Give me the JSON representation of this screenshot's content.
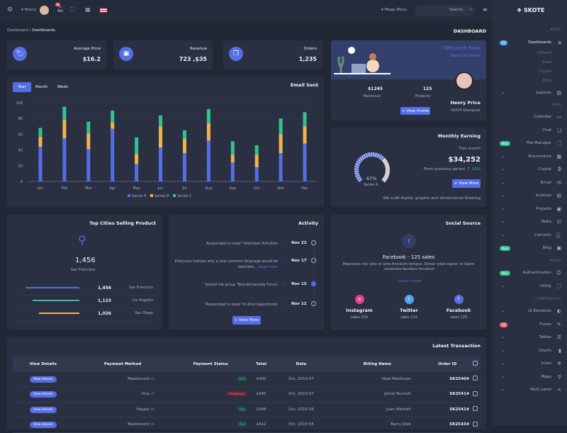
{
  "topbar": {
    "user": "Henry",
    "notif_count": "3",
    "mega_menu": "Mega Menu",
    "search_placeholder": "Search..."
  },
  "brand": "SKOTE",
  "breadcrumb": {
    "parent": "Dashboard",
    "current": "Dashboards"
  },
  "page_title": "DASHBOARD",
  "stats": [
    {
      "label": "Average Price",
      "value": "$16.2",
      "icon": "tag-icon"
    },
    {
      "label": "Revenue",
      "value": "723 ,$35",
      "icon": "archive-icon"
    },
    {
      "label": "Orders",
      "value": "1,235",
      "icon": "copy-icon"
    }
  ],
  "welcome": {
    "title": "! Welcome Back",
    "subtitle": "Skote Dashboard",
    "name": "Henry Price",
    "role": "UI/UX Designer",
    "revenue_value": "$1245",
    "revenue_label": "Revenue",
    "projects_value": "125",
    "projects_label": "Projects",
    "button": "View Profile"
  },
  "email_chart": {
    "title": "Email Sent",
    "tabs": [
      "Year",
      "Month",
      "Week"
    ],
    "active_tab": "Year"
  },
  "chart_data": {
    "type": "bar",
    "stacked": true,
    "categories": [
      "Jan",
      "Feb",
      "Mar",
      "Apr",
      "May",
      "Jun",
      "Jul",
      "Aug",
      "Sep",
      "Oct",
      "Nov",
      "Dec"
    ],
    "series": [
      {
        "name": "Series A",
        "color": "#556ee6",
        "values": [
          44,
          55,
          41,
          67,
          22,
          43,
          36,
          52,
          24,
          18,
          36,
          48
        ]
      },
      {
        "name": "Series B",
        "color": "#f1b44c",
        "values": [
          13,
          23,
          20,
          8,
          13,
          27,
          18,
          22,
          10,
          16,
          24,
          22
        ]
      },
      {
        "name": "Series C",
        "color": "#34c38f",
        "values": [
          11,
          17,
          15,
          15,
          21,
          14,
          11,
          18,
          17,
          12,
          20,
          18
        ]
      }
    ],
    "yticks": [
      0,
      20,
      40,
      60,
      80,
      100
    ],
    "ylim": [
      0,
      100
    ],
    "legend": "bottom",
    "grid": true
  },
  "earning": {
    "title": "Monthly Earning",
    "period": "This month",
    "value": "$34,252",
    "compare_label": "From previous period",
    "change": "12%",
    "gauge_percent": 67,
    "gauge_value": "67%",
    "gauge_label": "Series A",
    "button": "View More",
    "note": ".We craft digital, graphic and dimensional thinking"
  },
  "cities": {
    "title": "Top Cities Selling Product",
    "top_value": "1,456",
    "top_city": "San Francisco",
    "rows": [
      {
        "value": "1,456",
        "city": "San Francisco",
        "color": "#556ee6",
        "pct": 100
      },
      {
        "value": "1,123",
        "city": "Los Angeles",
        "color": "#34c38f",
        "pct": 87
      },
      {
        "value": "1,026",
        "city": "San Diego",
        "color": "#f1b44c",
        "pct": 75
      }
    ]
  },
  "activity": {
    "title": "Activity",
    "items": [
      {
        "text": "Responded to need \"Volunteer Activities",
        "date": "Nov 22"
      },
      {
        "text": "Everyone realizes why a new common language would be desirable...",
        "link": "Read more",
        "date": "Nov 17"
      },
      {
        "text": "\"Joined the group \"Boardsmanship Forum",
        "date": "Nov 15"
      },
      {
        "text": "\"Responded to need \"In-Kind Opportunity",
        "date": "Nov 12"
      }
    ],
    "button": "View More"
  },
  "social": {
    "title": "Social Source",
    "headline": "Facebook - 125 sales",
    "desc": "Maecenas nec odio et ante tincidunt tempus. Donec vitae sapien ut libero .venenatis faucibus tincidunt",
    "link": "Learn more",
    "sources": [
      {
        "name": "Instagram",
        "sales": "sales 104",
        "color": "#e83e8c",
        "icon": "instagram-icon"
      },
      {
        "name": "Twitter",
        "sales": "sales 112",
        "color": "#50a5f1",
        "icon": "twitter-icon"
      },
      {
        "name": "Facebook",
        "sales": "sales 125",
        "color": "#556ee6",
        "icon": "facebook-icon"
      }
    ]
  },
  "transactions": {
    "title": "Latest Transaction",
    "headers": [
      "View Details",
      "Payment Method",
      "Payment Status",
      "Total",
      "Date",
      "Billing Name",
      "Order ID"
    ],
    "rows": [
      {
        "button": "View Details",
        "method": "Mastercard",
        "status": "Paid",
        "total": "$400",
        "date": "Oct, 2019 07",
        "name": "Neal Matthews",
        "id": "SK2540#"
      },
      {
        "button": "View Details",
        "method": "Visa",
        "status": "Chargeback",
        "total": "$380",
        "date": "Oct, 2019 07",
        "name": "Jamal Burnett",
        "id": "SK2541#"
      },
      {
        "button": "View Details",
        "method": "Paypal",
        "status": "Paid",
        "total": "$384",
        "date": "Oct, 2019 06",
        "name": "Juan Mitchell",
        "id": "SK2542#"
      },
      {
        "button": "View Details",
        "method": "Mastercard",
        "status": "Paid",
        "total": "$412",
        "date": "Oct, 2019 05",
        "name": "Barry Dick",
        "id": "SK2543#"
      }
    ]
  },
  "sidebar": {
    "menu_head": "MENU",
    "apps_head": "APPS",
    "pages_head": "PAGES",
    "components_head": "COMPONENTS",
    "dashboards": {
      "label": "Dashboards",
      "badge": "04",
      "subs": [
        "Default",
        "Saas",
        "Crypto",
        "Blog"
      ]
    },
    "items_a": [
      {
        "label": "Layouts",
        "icon": "layout-icon",
        "chev": true
      }
    ],
    "items_apps": [
      {
        "label": "Calendar",
        "icon": "calendar-icon"
      },
      {
        "label": "Chat",
        "icon": "chat-icon"
      },
      {
        "label": "File Manager",
        "icon": "file-icon",
        "badge": "New"
      },
      {
        "label": "Ecommerce",
        "icon": "store-icon",
        "chev": true
      },
      {
        "label": "Crypto",
        "icon": "bitcoin-icon",
        "chev": true
      },
      {
        "label": "Email",
        "icon": "envelope-icon",
        "chev": true
      },
      {
        "label": "Invoices",
        "icon": "receipt-icon",
        "chev": true
      },
      {
        "label": "Projects",
        "icon": "briefcase-icon",
        "chev": true
      },
      {
        "label": "Tasks",
        "icon": "task-icon",
        "chev": true
      },
      {
        "label": "Contacts",
        "icon": "user-icon",
        "chev": true
      },
      {
        "label": "Blog",
        "icon": "blog-icon",
        "badge": "New"
      }
    ],
    "items_pages": [
      {
        "label": "Authentication",
        "icon": "user-circle-icon",
        "badge": "New"
      },
      {
        "label": "Utility",
        "icon": "file-icon",
        "chev": true
      }
    ],
    "items_comp": [
      {
        "label": "UI Elements",
        "icon": "tone-icon",
        "chev": true
      },
      {
        "label": "Forms",
        "icon": "edit-icon",
        "badge": "10"
      },
      {
        "label": "Tables",
        "icon": "list-icon",
        "chev": true
      },
      {
        "label": "Charts",
        "icon": "bar-chart-icon",
        "chev": true
      },
      {
        "label": "Icons",
        "icon": "aperture-icon",
        "chev": true
      },
      {
        "label": "Maps",
        "icon": "map-icon",
        "chev": true
      },
      {
        "label": "Multi Level",
        "icon": "share-icon",
        "chev": true
      }
    ]
  }
}
